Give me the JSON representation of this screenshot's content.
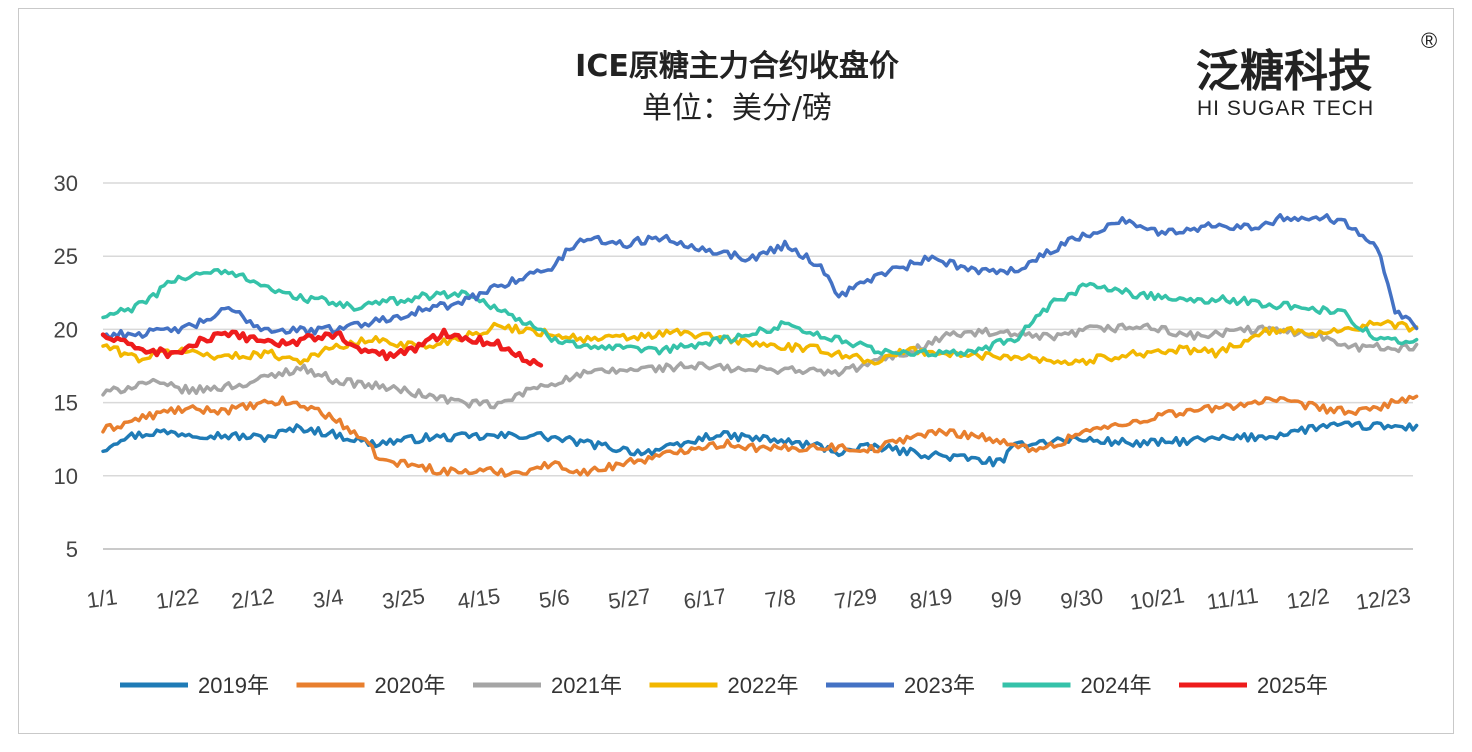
{
  "chart_data": {
    "type": "line",
    "title": "ICE原糖主力合约收盘价",
    "subtitle": "单位：美分/磅",
    "xlabel": "",
    "ylabel": "",
    "ylim": [
      5,
      30
    ],
    "yticks": [
      5,
      10,
      15,
      20,
      25,
      30
    ],
    "grid": true,
    "legend_position": "bottom",
    "x_count": 366,
    "x_tick_labels": [
      "1/1",
      "1/22",
      "2/12",
      "3/4",
      "3/25",
      "4/15",
      "5/6",
      "5/27",
      "6/17",
      "7/8",
      "7/29",
      "8/19",
      "9/9",
      "9/30",
      "10/21",
      "11/11",
      "12/2",
      "12/23"
    ],
    "series": [
      {
        "name": "2019年",
        "color": "#1f7bb6",
        "width": 3.5,
        "anchors": [
          [
            0,
            11.8
          ],
          [
            5,
            12.6
          ],
          [
            15,
            13.0
          ],
          [
            30,
            12.8
          ],
          [
            45,
            12.6
          ],
          [
            55,
            13.3
          ],
          [
            65,
            12.8
          ],
          [
            75,
            12.2
          ],
          [
            90,
            12.6
          ],
          [
            110,
            12.7
          ],
          [
            120,
            12.8
          ],
          [
            135,
            12.2
          ],
          [
            150,
            11.6
          ],
          [
            160,
            12.0
          ],
          [
            170,
            12.8
          ],
          [
            185,
            12.5
          ],
          [
            200,
            12.0
          ],
          [
            205,
            11.6
          ],
          [
            215,
            12.0
          ],
          [
            225,
            11.6
          ],
          [
            240,
            11.2
          ],
          [
            250,
            10.9
          ],
          [
            255,
            12.2
          ],
          [
            270,
            12.5
          ],
          [
            290,
            12.2
          ],
          [
            310,
            12.5
          ],
          [
            325,
            12.7
          ],
          [
            340,
            13.4
          ],
          [
            352,
            13.4
          ],
          [
            366,
            13.3
          ]
        ]
      },
      {
        "name": "2020年",
        "color": "#e87f2e",
        "width": 3.5,
        "anchors": [
          [
            0,
            13.1
          ],
          [
            10,
            13.9
          ],
          [
            20,
            14.5
          ],
          [
            35,
            14.5
          ],
          [
            50,
            15.1
          ],
          [
            60,
            14.5
          ],
          [
            70,
            13.0
          ],
          [
            78,
            11.0
          ],
          [
            85,
            10.8
          ],
          [
            95,
            10.3
          ],
          [
            110,
            10.3
          ],
          [
            115,
            10.2
          ],
          [
            125,
            10.8
          ],
          [
            135,
            10.2
          ],
          [
            145,
            10.9
          ],
          [
            155,
            11.3
          ],
          [
            165,
            12.0
          ],
          [
            175,
            12.2
          ],
          [
            185,
            11.8
          ],
          [
            200,
            12.0
          ],
          [
            215,
            11.8
          ],
          [
            225,
            12.7
          ],
          [
            235,
            13.0
          ],
          [
            245,
            12.7
          ],
          [
            255,
            11.9
          ],
          [
            265,
            12.0
          ],
          [
            272,
            13.0
          ],
          [
            285,
            13.5
          ],
          [
            295,
            14.2
          ],
          [
            310,
            14.6
          ],
          [
            325,
            15.2
          ],
          [
            340,
            14.6
          ],
          [
            350,
            14.3
          ],
          [
            366,
            15.5
          ]
        ]
      },
      {
        "name": "2021年",
        "color": "#a5a5a5",
        "width": 3.5,
        "anchors": [
          [
            0,
            15.6
          ],
          [
            12,
            16.4
          ],
          [
            25,
            15.8
          ],
          [
            40,
            16.3
          ],
          [
            55,
            17.4
          ],
          [
            65,
            16.5
          ],
          [
            80,
            16.0
          ],
          [
            90,
            15.5
          ],
          [
            100,
            15.0
          ],
          [
            110,
            14.8
          ],
          [
            120,
            16.0
          ],
          [
            135,
            17.0
          ],
          [
            150,
            17.3
          ],
          [
            165,
            17.5
          ],
          [
            180,
            17.2
          ],
          [
            190,
            17.3
          ],
          [
            205,
            17.0
          ],
          [
            215,
            17.8
          ],
          [
            225,
            18.5
          ],
          [
            235,
            19.6
          ],
          [
            245,
            19.8
          ],
          [
            255,
            19.6
          ],
          [
            265,
            19.4
          ],
          [
            275,
            20.0
          ],
          [
            290,
            20.2
          ],
          [
            305,
            19.5
          ],
          [
            320,
            20.0
          ],
          [
            335,
            19.8
          ],
          [
            350,
            18.8
          ],
          [
            366,
            18.7
          ]
        ]
      },
      {
        "name": "2022年",
        "color": "#f2b700",
        "width": 3.5,
        "anchors": [
          [
            0,
            18.9
          ],
          [
            10,
            18.0
          ],
          [
            20,
            18.6
          ],
          [
            35,
            18.1
          ],
          [
            45,
            18.4
          ],
          [
            55,
            17.9
          ],
          [
            65,
            18.8
          ],
          [
            75,
            19.3
          ],
          [
            90,
            18.8
          ],
          [
            100,
            19.5
          ],
          [
            110,
            20.2
          ],
          [
            120,
            19.9
          ],
          [
            135,
            19.3
          ],
          [
            150,
            19.5
          ],
          [
            160,
            19.8
          ],
          [
            175,
            19.3
          ],
          [
            185,
            18.9
          ],
          [
            200,
            18.6
          ],
          [
            215,
            17.8
          ],
          [
            225,
            18.6
          ],
          [
            240,
            18.2
          ],
          [
            255,
            18.2
          ],
          [
            270,
            17.7
          ],
          [
            285,
            18.3
          ],
          [
            300,
            18.6
          ],
          [
            310,
            18.4
          ],
          [
            325,
            19.9
          ],
          [
            340,
            19.8
          ],
          [
            355,
            20.4
          ],
          [
            366,
            20.1
          ]
        ]
      },
      {
        "name": "2023年",
        "color": "#4472c4",
        "width": 3.5,
        "anchors": [
          [
            0,
            19.6
          ],
          [
            15,
            19.8
          ],
          [
            25,
            20.2
          ],
          [
            35,
            21.4
          ],
          [
            45,
            20.0
          ],
          [
            60,
            19.9
          ],
          [
            75,
            20.5
          ],
          [
            90,
            21.4
          ],
          [
            100,
            21.8
          ],
          [
            110,
            23.0
          ],
          [
            125,
            24.2
          ],
          [
            130,
            25.5
          ],
          [
            135,
            26.3
          ],
          [
            145,
            25.8
          ],
          [
            155,
            26.3
          ],
          [
            170,
            25.4
          ],
          [
            180,
            24.8
          ],
          [
            190,
            25.8
          ],
          [
            200,
            24.3
          ],
          [
            205,
            22.3
          ],
          [
            215,
            23.6
          ],
          [
            230,
            24.8
          ],
          [
            245,
            24.0
          ],
          [
            255,
            24.1
          ],
          [
            265,
            25.5
          ],
          [
            275,
            26.6
          ],
          [
            285,
            27.5
          ],
          [
            295,
            26.5
          ],
          [
            310,
            27.2
          ],
          [
            320,
            27.0
          ],
          [
            330,
            27.7
          ],
          [
            345,
            27.5
          ],
          [
            355,
            25.8
          ],
          [
            360,
            21.4
          ],
          [
            366,
            20.2
          ]
        ]
      },
      {
        "name": "2024年",
        "color": "#35c2a9",
        "width": 3.5,
        "anchors": [
          [
            0,
            20.8
          ],
          [
            10,
            21.6
          ],
          [
            20,
            23.4
          ],
          [
            30,
            24.0
          ],
          [
            40,
            23.6
          ],
          [
            50,
            22.4
          ],
          [
            60,
            22.0
          ],
          [
            70,
            21.5
          ],
          [
            80,
            21.9
          ],
          [
            90,
            22.3
          ],
          [
            100,
            22.5
          ],
          [
            110,
            21.5
          ],
          [
            125,
            19.4
          ],
          [
            140,
            18.7
          ],
          [
            155,
            18.5
          ],
          [
            170,
            19.2
          ],
          [
            180,
            19.6
          ],
          [
            190,
            20.4
          ],
          [
            200,
            19.6
          ],
          [
            215,
            18.6
          ],
          [
            225,
            18.4
          ],
          [
            240,
            18.3
          ],
          [
            255,
            19.5
          ],
          [
            265,
            21.8
          ],
          [
            275,
            23.1
          ],
          [
            285,
            22.5
          ],
          [
            300,
            22.1
          ],
          [
            315,
            22.0
          ],
          [
            330,
            21.6
          ],
          [
            345,
            21.2
          ],
          [
            355,
            19.3
          ],
          [
            366,
            19.1
          ]
        ]
      },
      {
        "name": "2025年",
        "color": "#ee1c1c",
        "width": 4.5,
        "anchors": [
          [
            0,
            19.6
          ],
          [
            5,
            19.1
          ],
          [
            12,
            18.6
          ],
          [
            20,
            18.3
          ],
          [
            28,
            19.3
          ],
          [
            35,
            19.6
          ],
          [
            42,
            19.4
          ],
          [
            50,
            19.0
          ],
          [
            58,
            19.4
          ],
          [
            65,
            19.7
          ],
          [
            72,
            18.5
          ],
          [
            80,
            18.2
          ],
          [
            88,
            18.8
          ],
          [
            95,
            19.8
          ],
          [
            102,
            19.4
          ],
          [
            110,
            19.0
          ],
          [
            117,
            18.0
          ],
          [
            122,
            17.7
          ]
        ]
      }
    ]
  },
  "logo": {
    "cn": "泛糖科技",
    "en": "HI SUGAR TECH",
    "registered": "®"
  }
}
